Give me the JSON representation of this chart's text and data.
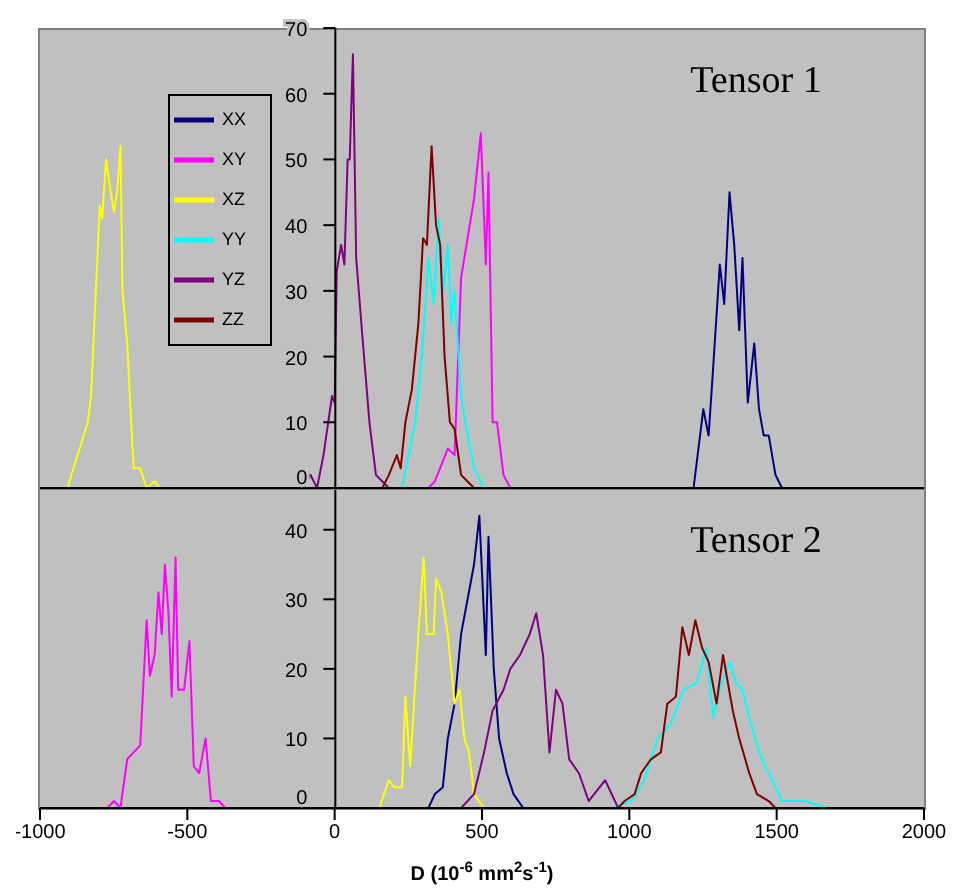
{
  "chart_data": [
    {
      "type": "line",
      "title": "Tensor 1",
      "xlim": [
        -1000,
        2000
      ],
      "ylim": [
        0,
        70
      ],
      "yticks": [
        0,
        10,
        20,
        30,
        40,
        50,
        60,
        70
      ],
      "tick_labels": "y",
      "legend": "top left",
      "series": [
        {
          "name": "XX",
          "color": "#000080",
          "x": [
            1218,
            1251,
            1269,
            1284,
            1307,
            1322,
            1340,
            1356,
            1373,
            1384,
            1402,
            1424,
            1440,
            1456,
            1473,
            1496,
            1518
          ],
          "values": [
            0,
            12,
            8,
            18,
            34,
            28,
            45,
            37,
            24,
            35,
            13,
            22,
            12,
            8,
            8,
            2,
            0
          ]
        },
        {
          "name": "XY",
          "color": "#ff00ff",
          "x": [
            318,
            340,
            384,
            407,
            429,
            451,
            473,
            496,
            513,
            522,
            536,
            551,
            573,
            596
          ],
          "values": [
            0,
            1,
            6,
            5,
            32,
            38,
            44,
            54,
            34,
            48,
            10,
            10,
            2,
            0
          ]
        },
        {
          "name": "XZ",
          "color": "#ffff00",
          "x": [
            -907,
            -838,
            -827,
            -797,
            -789,
            -776,
            -760,
            -749,
            -738,
            -727,
            -720,
            -704,
            -693,
            -682,
            -660,
            -638,
            -611,
            -593
          ],
          "values": [
            0,
            10,
            14,
            43,
            41,
            50,
            45,
            42,
            45,
            52,
            30,
            22,
            12,
            3,
            3,
            0,
            1,
            0
          ]
        },
        {
          "name": "YY",
          "color": "#00ffff",
          "x": [
            229,
            273,
            296,
            318,
            336,
            353,
            369,
            384,
            396,
            407,
            429,
            451,
            473,
            507
          ],
          "values": [
            0,
            10,
            20,
            35,
            28,
            41,
            30,
            37,
            25,
            30,
            14,
            8,
            3,
            0
          ]
        },
        {
          "name": "YZ",
          "color": "#800080",
          "x": [
            -105,
            -82,
            -60,
            -38,
            -22,
            -9,
            0,
            7,
            22,
            33,
            44,
            51,
            62,
            73,
            96,
            118,
            140,
            162,
            184
          ],
          "values": [
            0,
            2,
            0,
            5,
            10,
            14,
            13,
            33,
            37,
            34,
            50,
            50,
            66,
            35,
            22,
            10,
            2,
            1,
            0
          ]
        },
        {
          "name": "ZZ",
          "color": "#800000",
          "x": [
            162,
            184,
            211,
            224,
            240,
            262,
            284,
            300,
            313,
            329,
            344,
            358,
            373,
            391,
            407,
            429,
            451,
            473
          ],
          "values": [
            0,
            2,
            5,
            3,
            10,
            15,
            25,
            38,
            37,
            52,
            40,
            37,
            20,
            10,
            9,
            2,
            1,
            0
          ]
        }
      ]
    },
    {
      "type": "line",
      "title": "Tensor 2",
      "xlabel": "D (10$^{-6}$ mm$^{2}$s$^{-1}$)",
      "xlim": [
        -1000,
        2000
      ],
      "xticks": [
        -1000,
        -500,
        0,
        500,
        1000,
        1500,
        2000
      ],
      "ylim": [
        0,
        46
      ],
      "yticks": [
        0,
        10,
        20,
        30,
        40
      ],
      "series": [
        {
          "color": "#000080",
          "x": [
            318,
            340,
            367,
            384,
            407,
            429,
            451,
            473,
            491,
            513,
            522,
            540,
            558,
            584,
            607,
            640
          ],
          "values": [
            0,
            2,
            3,
            10,
            15,
            25,
            30,
            35,
            42,
            22,
            39,
            20,
            10,
            5,
            2,
            0
          ]
        },
        {
          "color": "#ff00ff",
          "x": [
            -771,
            -749,
            -727,
            -704,
            -682,
            -660,
            -638,
            -627,
            -611,
            -598,
            -587,
            -576,
            -564,
            -553,
            -540,
            -531,
            -511,
            -493,
            -478,
            -460,
            -438,
            -420,
            -393,
            -371
          ],
          "values": [
            0,
            1,
            0,
            7,
            8,
            9,
            27,
            19,
            22,
            31,
            25,
            35,
            28,
            16,
            36,
            17,
            17,
            24,
            6,
            5,
            10,
            1,
            1,
            0
          ]
        },
        {
          "color": "#ffff00",
          "x": [
            151,
            184,
            202,
            229,
            240,
            256,
            284,
            302,
            313,
            336,
            344,
            362,
            384,
            407,
            424,
            440,
            456,
            473,
            507
          ],
          "values": [
            0,
            4,
            3,
            3,
            16,
            6,
            25,
            36,
            25,
            25,
            33,
            31,
            25,
            15,
            17,
            10,
            8,
            2,
            0
          ]
        },
        {
          "color": "#00ffff",
          "x": [
            940,
            1007,
            1051,
            1096,
            1140,
            1184,
            1229,
            1262,
            1284,
            1307,
            1340,
            1362,
            1384,
            1407,
            1440,
            1473,
            1518,
            1596,
            1673
          ],
          "values": [
            0,
            1,
            4,
            10,
            12,
            17,
            18,
            23,
            13,
            17,
            21,
            18,
            17,
            13,
            8,
            5,
            1,
            1,
            0
          ]
        },
        {
          "color": "#800080",
          "x": [
            429,
            473,
            507,
            536,
            573,
            596,
            629,
            662,
            684,
            707,
            729,
            751,
            773,
            796,
            829,
            862,
            918,
            962
          ],
          "values": [
            0,
            2,
            8,
            14,
            17,
            20,
            22,
            25,
            28,
            22,
            8,
            17,
            15,
            7,
            5,
            1,
            4,
            0
          ]
        },
        {
          "color": "#800000",
          "x": [
            962,
            984,
            1018,
            1040,
            1073,
            1107,
            1129,
            1158,
            1180,
            1202,
            1224,
            1247,
            1269,
            1296,
            1318,
            1351,
            1373,
            1407,
            1433,
            1473,
            1496
          ],
          "values": [
            0,
            1,
            2,
            5,
            7,
            8,
            15,
            16,
            26,
            22,
            27,
            23,
            21,
            15,
            22,
            14,
            10,
            5,
            2,
            1,
            0
          ]
        }
      ]
    }
  ]
}
